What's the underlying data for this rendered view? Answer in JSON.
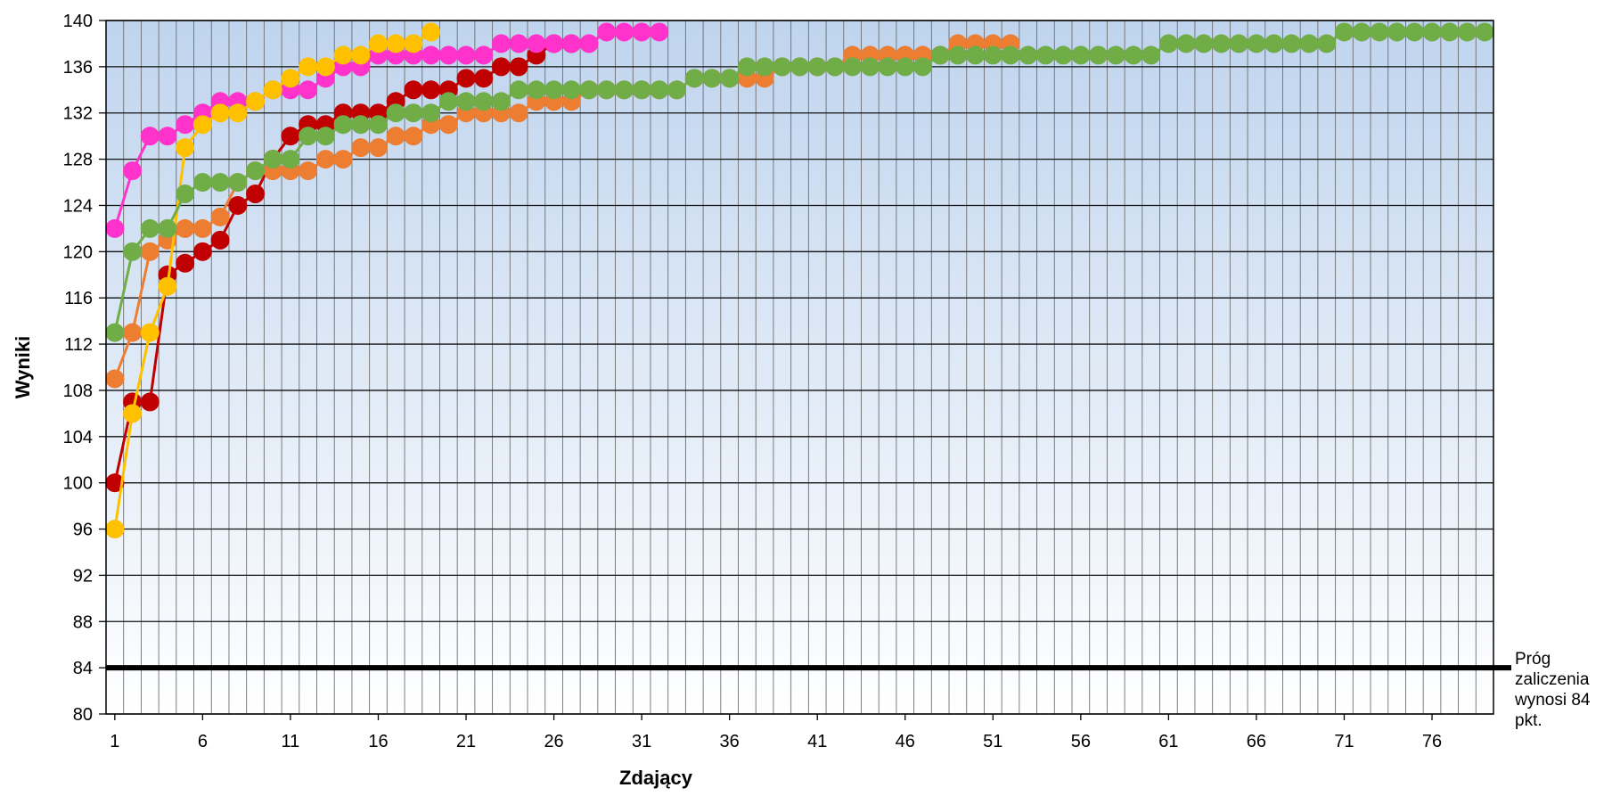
{
  "chart_data": {
    "type": "line",
    "xlabel": "Zdający",
    "ylabel": "Wyniki",
    "xlim": [
      1,
      79
    ],
    "ylim": [
      80,
      140
    ],
    "x_ticks": [
      1,
      6,
      11,
      16,
      21,
      26,
      31,
      36,
      41,
      46,
      51,
      56,
      61,
      66,
      71,
      76
    ],
    "y_ticks": [
      80,
      84,
      88,
      92,
      96,
      100,
      104,
      108,
      112,
      116,
      120,
      124,
      128,
      132,
      136,
      140
    ],
    "grid": true,
    "threshold": {
      "value": 84,
      "label": "Próg zaliczenia wynosi 84 pkt.",
      "color": "#000000"
    },
    "series": [
      {
        "color": "#C00000",
        "values": [
          100,
          107,
          107,
          118,
          119,
          120,
          121,
          124,
          125,
          128,
          130,
          131,
          131,
          132,
          132,
          132,
          133,
          134,
          134,
          134,
          135,
          135,
          136,
          136,
          137,
          138,
          138
        ]
      },
      {
        "color": "#ED7D31",
        "values": [
          109,
          113,
          120,
          121,
          122,
          122,
          123,
          126,
          127,
          127,
          127,
          127,
          128,
          128,
          129,
          129,
          130,
          130,
          131,
          131,
          132,
          132,
          132,
          132,
          133,
          133,
          133,
          134,
          134,
          134,
          134,
          134,
          134,
          135,
          135,
          135,
          135,
          135,
          136,
          136,
          136,
          136,
          137,
          137,
          137,
          137,
          137,
          137,
          138,
          138,
          138,
          138
        ]
      },
      {
        "color": "#FF33CC",
        "values": [
          122,
          127,
          130,
          130,
          131,
          132,
          133,
          133,
          133,
          134,
          134,
          134,
          135,
          136,
          136,
          137,
          137,
          137,
          137,
          137,
          137,
          137,
          138,
          138,
          138,
          138,
          138,
          138,
          139,
          139,
          139,
          139
        ]
      },
      {
        "color": "#FFC000",
        "values": [
          96,
          106,
          113,
          117,
          129,
          131,
          132,
          132,
          133,
          134,
          135,
          136,
          136,
          137,
          137,
          138,
          138,
          138,
          139
        ]
      },
      {
        "color": "#70AD47",
        "values": [
          113,
          120,
          122,
          122,
          125,
          126,
          126,
          126,
          127,
          128,
          128,
          130,
          130,
          131,
          131,
          131,
          132,
          132,
          132,
          133,
          133,
          133,
          133,
          134,
          134,
          134,
          134,
          134,
          134,
          134,
          134,
          134,
          134,
          135,
          135,
          135,
          136,
          136,
          136,
          136,
          136,
          136,
          136,
          136,
          136,
          136,
          136,
          137,
          137,
          137,
          137,
          137,
          137,
          137,
          137,
          137,
          137,
          137,
          137,
          137,
          138,
          138,
          138,
          138,
          138,
          138,
          138,
          138,
          138,
          138,
          139,
          139,
          139,
          139,
          139,
          139,
          139,
          139,
          139
        ]
      }
    ]
  }
}
